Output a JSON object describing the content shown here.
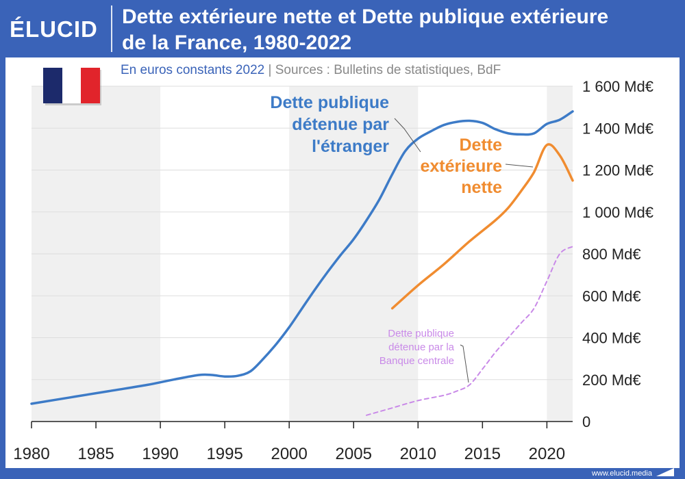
{
  "header": {
    "logo": "ÉLUCID",
    "title_line1": "Dette extérieure nette et Dette publique extérieure",
    "title_line2": "de la France, 1980-2022"
  },
  "subtitle": {
    "unit": "En euros constants 2022",
    "separator": "|",
    "sources": "Sources : Bulletins de statistiques, BdF"
  },
  "footer": {
    "url": "www.elucid.media"
  },
  "colors": {
    "brand": "#3a63b8",
    "series_public_foreign": "#3d7bc7",
    "series_net_external": "#f08c30",
    "series_central_bank": "#c98ae8",
    "band": "#f0f0f0"
  },
  "chart_data": {
    "type": "line",
    "xlim": [
      1980,
      2022
    ],
    "ylim": [
      0,
      1600
    ],
    "x_ticks": [
      1980,
      1985,
      1990,
      1995,
      2000,
      2005,
      2010,
      2015,
      2020
    ],
    "y_ticks": [
      {
        "value": 0,
        "label": "0"
      },
      {
        "value": 200,
        "label": "200 Md€"
      },
      {
        "value": 400,
        "label": "400 Md€"
      },
      {
        "value": 600,
        "label": "600 Md€"
      },
      {
        "value": 800,
        "label": "800 Md€"
      },
      {
        "value": 1000,
        "label": "1 000 Md€"
      },
      {
        "value": 1200,
        "label": "1 200 Md€"
      },
      {
        "value": 1400,
        "label": "1 400 Md€"
      },
      {
        "value": 1600,
        "label": "1 600 Md€"
      }
    ],
    "grid": true,
    "y_axis_position": "right",
    "shaded_bands": [
      [
        1980,
        1990
      ],
      [
        2000,
        2010
      ],
      [
        2020,
        2022
      ]
    ],
    "series": [
      {
        "label_lines": [
          "Dette publique",
          "détenue par",
          "l'étranger"
        ],
        "style": "solid",
        "points": [
          [
            1980,
            85
          ],
          [
            1983,
            115
          ],
          [
            1986,
            145
          ],
          [
            1989,
            175
          ],
          [
            1991,
            200
          ],
          [
            1993,
            222
          ],
          [
            1994,
            222
          ],
          [
            1995,
            215
          ],
          [
            1996,
            218
          ],
          [
            1997,
            240
          ],
          [
            1998,
            300
          ],
          [
            1999,
            370
          ],
          [
            2000,
            450
          ],
          [
            2001,
            540
          ],
          [
            2002,
            630
          ],
          [
            2003,
            715
          ],
          [
            2004,
            795
          ],
          [
            2005,
            870
          ],
          [
            2006,
            960
          ],
          [
            2007,
            1060
          ],
          [
            2008,
            1180
          ],
          [
            2009,
            1290
          ],
          [
            2010,
            1350
          ],
          [
            2011,
            1385
          ],
          [
            2012,
            1415
          ],
          [
            2013,
            1430
          ],
          [
            2014,
            1435
          ],
          [
            2015,
            1425
          ],
          [
            2016,
            1395
          ],
          [
            2017,
            1375
          ],
          [
            2018,
            1370
          ],
          [
            2019,
            1375
          ],
          [
            2020,
            1420
          ],
          [
            2021,
            1440
          ],
          [
            2022,
            1480
          ]
        ]
      },
      {
        "label_lines": [
          "Dette",
          "extérieure",
          "nette"
        ],
        "style": "solid",
        "points": [
          [
            2008,
            540
          ],
          [
            2010,
            650
          ],
          [
            2012,
            750
          ],
          [
            2014,
            860
          ],
          [
            2016,
            960
          ],
          [
            2017,
            1020
          ],
          [
            2018,
            1100
          ],
          [
            2019,
            1190
          ],
          [
            2020,
            1320
          ],
          [
            2021,
            1270
          ],
          [
            2022,
            1150
          ]
        ]
      },
      {
        "label_lines": [
          "Dette publique",
          "détenue par la",
          "Banque centrale"
        ],
        "style": "dashed",
        "points": [
          [
            2006,
            30
          ],
          [
            2008,
            65
          ],
          [
            2010,
            100
          ],
          [
            2012,
            125
          ],
          [
            2013,
            145
          ],
          [
            2014,
            175
          ],
          [
            2015,
            250
          ],
          [
            2016,
            330
          ],
          [
            2017,
            400
          ],
          [
            2018,
            470
          ],
          [
            2019,
            540
          ],
          [
            2020,
            670
          ],
          [
            2021,
            800
          ],
          [
            2022,
            835
          ]
        ]
      }
    ]
  }
}
